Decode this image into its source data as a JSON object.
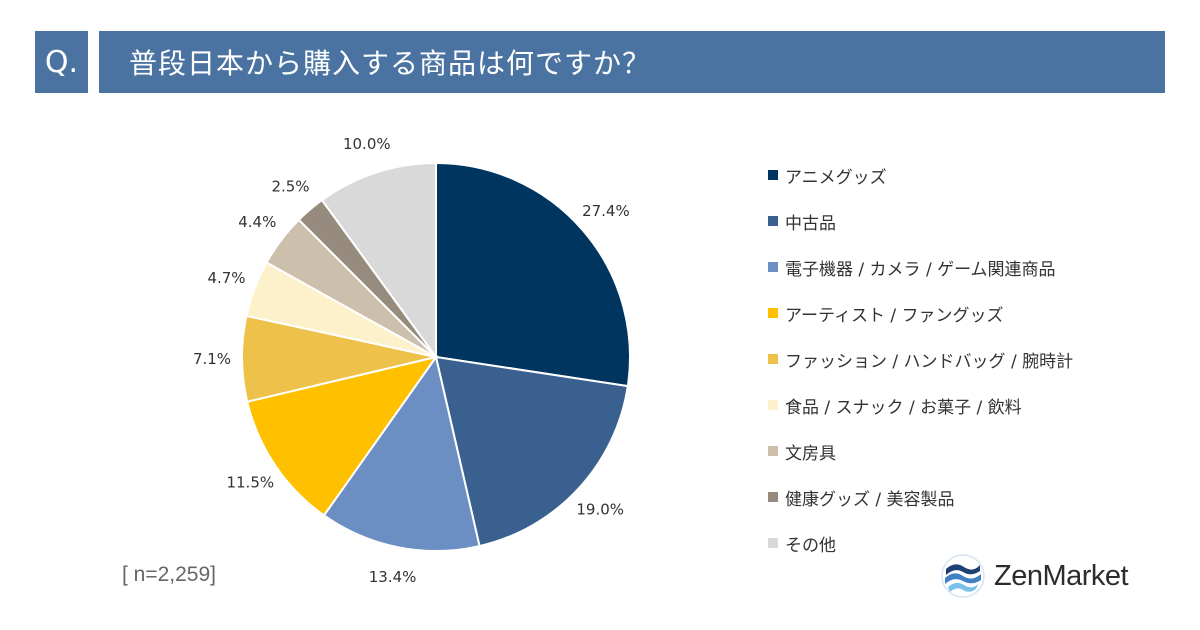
{
  "header": {
    "q_label": "Q.",
    "title": "普段日本から購入する商品は何ですか？"
  },
  "chart_data": {
    "type": "pie",
    "title": "普段日本から購入する商品は何ですか？",
    "labels": [
      "アニメグッズ",
      "中古品",
      "電子機器 / カメラ / ゲーム関連商品",
      "アーティスト / ファングッズ",
      "ファッション / ハンドバッグ / 腕時計",
      "食品 / スナック / お菓子 / 飲料",
      "文房具",
      "健康グッズ / 美容製品",
      "その他"
    ],
    "values": [
      27.4,
      19.0,
      13.4,
      11.5,
      7.1,
      4.7,
      4.4,
      2.5,
      10.0
    ],
    "value_labels": [
      "27.4%",
      "19.0%",
      "13.4%",
      "11.5%",
      "7.1%",
      "4.7%",
      "4.4%",
      "2.5%",
      "10.0%"
    ],
    "colors": [
      "#003560",
      "#3a6090",
      "#6b8fc2",
      "#ffc000",
      "#eec24a",
      "#fdf1cc",
      "#ccbfab",
      "#968b7c",
      "#d9d9d9"
    ],
    "legend_position": "right",
    "sample_size": "[ n=2,259]"
  },
  "brand": {
    "name": "ZenMarket"
  }
}
